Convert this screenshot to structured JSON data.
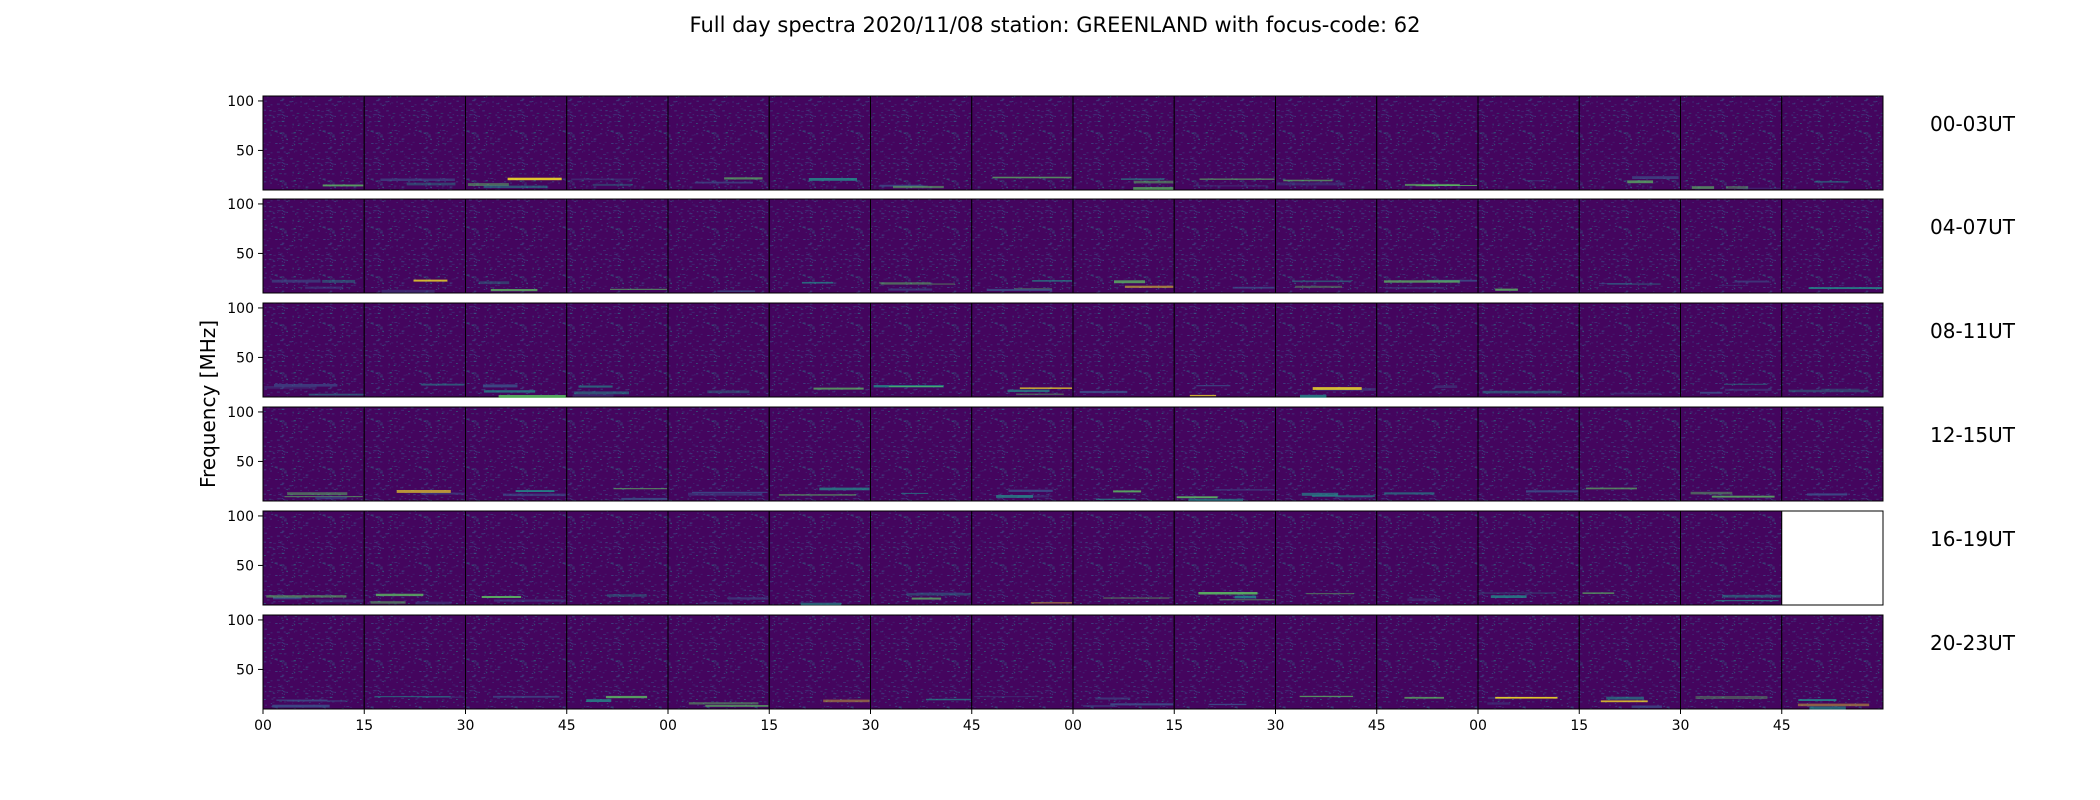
{
  "chart_data": {
    "type": "heatmap",
    "title": "Full day spectra 2020/11/08 station: GREENLAND with focus-code: 62",
    "ylabel": "Frequency [MHz]",
    "xlabel": "",
    "y_ticks": [
      100,
      50
    ],
    "ylim": [
      10,
      105
    ],
    "x_tick_labels": [
      "00",
      "15",
      "30",
      "45",
      "00",
      "15",
      "30",
      "45",
      "00",
      "15",
      "30",
      "45",
      "00",
      "15",
      "30",
      "45"
    ],
    "row_labels": [
      "00-03UT",
      "04-07UT",
      "08-11UT",
      "12-15UT",
      "16-19UT",
      "20-23UT"
    ],
    "panels_per_row": 16,
    "missing_panels": [
      {
        "row": 4,
        "col": 15
      }
    ],
    "colormap": [
      "#440154",
      "#3b528b",
      "#21918c",
      "#5ec962",
      "#fde725"
    ],
    "background_color": "#44055e",
    "grid": false
  }
}
